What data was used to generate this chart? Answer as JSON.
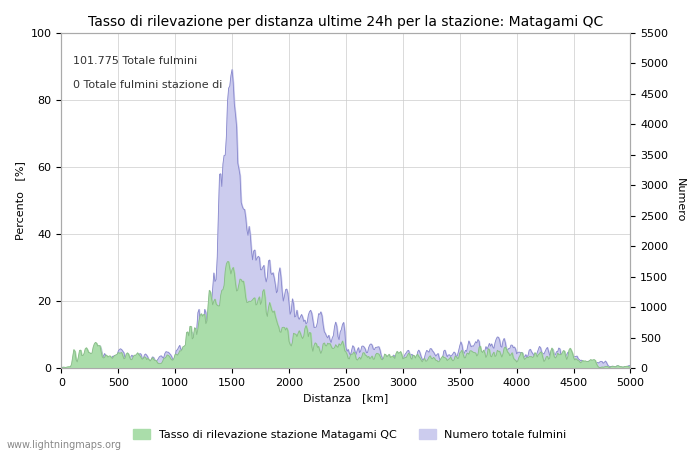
{
  "title": "Tasso di rilevazione per distanza ultime 24h per la stazione: Matagami QC",
  "xlabel": "Distanza   [km]",
  "ylabel_left": "Percento   [%]",
  "ylabel_right": "Numero",
  "annotation_line1": "101.775 Totale fulmini",
  "annotation_line2": "0 Totale fulmini stazione di",
  "xlim": [
    0,
    5000
  ],
  "ylim_left": [
    0,
    100
  ],
  "ylim_right": [
    0,
    5500
  ],
  "right_ticks": [
    0,
    500,
    1000,
    1500,
    2000,
    2500,
    3000,
    3500,
    4000,
    4500,
    5000,
    5500
  ],
  "legend_label_green": "Tasso di rilevazione stazione Matagami QC",
  "legend_label_blue": "Numero totale fulmini",
  "watermark": "www.lightningmaps.org",
  "bg_color": "#ffffff",
  "grid_color": "#cccccc",
  "line_color_blue": "#8888cc",
  "fill_color_blue": "#ccccee",
  "fill_color_green": "#aaddaa",
  "title_fontsize": 10,
  "axis_fontsize": 8,
  "tick_fontsize": 8
}
